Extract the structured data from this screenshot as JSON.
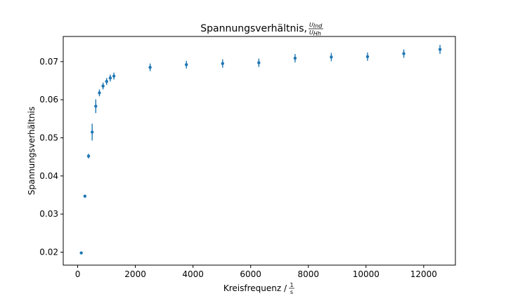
{
  "chart_data": {
    "type": "scatter",
    "title": "Spannungsverhältnis,",
    "title_fraction": {
      "numerator": "U",
      "numerator_sub": "Ind",
      "denominator": "U",
      "denominator_sub": "Hh"
    },
    "xlabel": "Kreisfrequenz /",
    "xlabel_fraction": {
      "numerator": "1",
      "denominator": "s"
    },
    "ylabel": "Spannungsverhältnis",
    "xlim": [
      -500,
      13100
    ],
    "ylim": [
      0.0166,
      0.0766
    ],
    "xticks": [
      0,
      2000,
      4000,
      6000,
      8000,
      10000,
      12000
    ],
    "yticks": [
      0.02,
      0.03,
      0.04,
      0.05,
      0.06,
      0.07
    ],
    "ytick_labels": [
      "0.02",
      "0.03",
      "0.04",
      "0.05",
      "0.06",
      "0.07"
    ],
    "grid": false,
    "color": "#1f77b4",
    "series": [
      {
        "x": [
          125,
          251,
          377,
          503,
          628,
          754,
          880,
          1005,
          1131,
          1257,
          2513,
          3770,
          5027,
          6283,
          7540,
          8796,
          10053,
          11310,
          12566
        ],
        "y": [
          0.0198,
          0.0347,
          0.0452,
          0.0515,
          0.0583,
          0.0618,
          0.0636,
          0.0648,
          0.0657,
          0.0662,
          0.0685,
          0.0692,
          0.0695,
          0.0697,
          0.0709,
          0.0712,
          0.0713,
          0.0721,
          0.0732
        ],
        "yerr": [
          0.0002,
          0.0004,
          0.0006,
          0.0022,
          0.0018,
          0.0009,
          0.0009,
          0.0009,
          0.0009,
          0.0009,
          0.001,
          0.001,
          0.0011,
          0.0011,
          0.0011,
          0.0011,
          0.0011,
          0.0011,
          0.0012
        ]
      }
    ]
  }
}
